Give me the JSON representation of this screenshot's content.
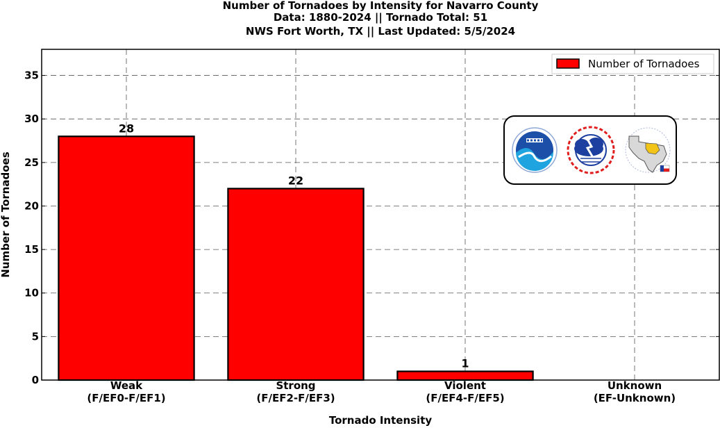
{
  "chart_data": {
    "type": "bar",
    "title_lines": [
      "Number of Tornadoes by Intensity for Navarro County",
      "Data: 1880-2024 || Tornado Total: 51",
      "NWS Fort Worth, TX || Last Updated: 5/5/2024"
    ],
    "categories": [
      [
        "Weak",
        "(F/EF0-F/EF1)"
      ],
      [
        "Strong",
        "(F/EF2-F/EF3)"
      ],
      [
        "Violent",
        "(F/EF4-F/EF5)"
      ],
      [
        "Unknown",
        "(EF-Unknown)"
      ]
    ],
    "values": [
      28,
      22,
      1,
      0
    ],
    "data_labels": [
      "28",
      "22",
      "1",
      ""
    ],
    "series": [
      {
        "name": "Number of Tornadoes",
        "values": [
          28,
          22,
          1,
          0
        ]
      }
    ],
    "xlabel": "Tornado Intensity",
    "ylabel": "Number of Tornadoes",
    "ylim": [
      0,
      38
    ],
    "yticks": [
      0,
      5,
      10,
      15,
      20,
      25,
      30,
      35
    ],
    "grid": true,
    "legend_position": "top-right",
    "bar_color": "#ff0000",
    "edge_color": "#000000",
    "logos": [
      "noaa-logo",
      "nws-logo",
      "nws-fort-worth-logo"
    ]
  }
}
